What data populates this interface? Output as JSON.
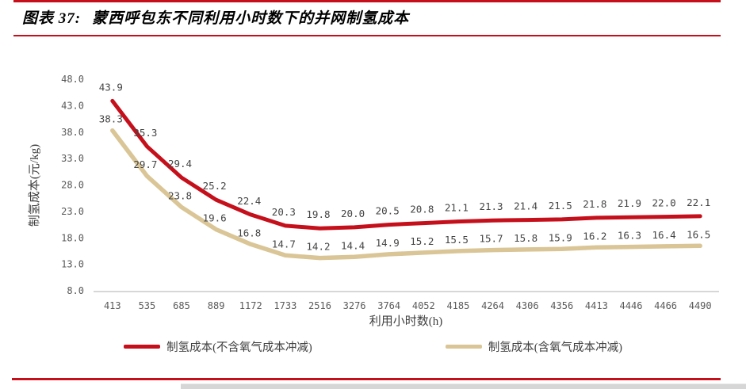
{
  "figure": {
    "label": "图表 37:",
    "title": "蒙西呼包东不同利用小时数下的并网制氢成本"
  },
  "accent_red": "#C5101C",
  "chart_data": {
    "type": "line",
    "categories": [
      "413",
      "535",
      "685",
      "889",
      "1172",
      "1733",
      "2516",
      "3276",
      "3764",
      "4052",
      "4185",
      "4264",
      "4306",
      "4356",
      "4413",
      "4446",
      "4466",
      "4490"
    ],
    "series": [
      {
        "name": "制氢成本(不含氧气成本冲减)",
        "color": "#C5101C",
        "values": [
          43.9,
          35.3,
          29.4,
          25.2,
          22.4,
          20.3,
          19.8,
          20.0,
          20.5,
          20.8,
          21.1,
          21.3,
          21.4,
          21.5,
          21.8,
          21.9,
          22.0,
          22.1
        ]
      },
      {
        "name": "制氢成本(含氧气成本冲减)",
        "color": "#DAC596",
        "values": [
          38.3,
          29.7,
          23.8,
          19.6,
          16.8,
          14.7,
          14.2,
          14.4,
          14.9,
          15.2,
          15.5,
          15.7,
          15.8,
          15.9,
          16.2,
          16.3,
          16.4,
          16.5
        ]
      }
    ],
    "xlabel": "利用小时数(h)",
    "ylabel": "制氢成本(元/kg)",
    "ylim": [
      8.0,
      48.0
    ],
    "ytick_step": 5.0,
    "yticks": [
      "48.0",
      "43.0",
      "38.0",
      "33.0",
      "28.0",
      "23.0",
      "18.0",
      "13.0",
      "8.0"
    ],
    "grid": false,
    "data_labels": true,
    "legend_position": "bottom"
  }
}
